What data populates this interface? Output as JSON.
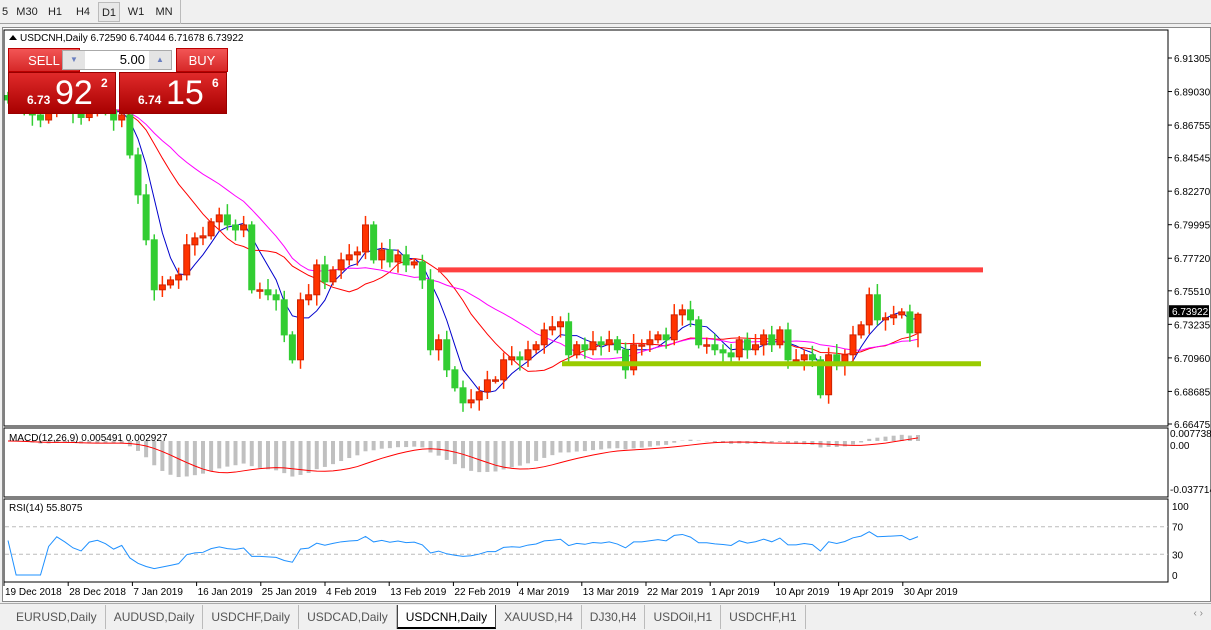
{
  "toolbar": {
    "timeframes": [
      {
        "label": "5",
        "active": false
      },
      {
        "label": "M30",
        "active": false
      },
      {
        "label": "H1",
        "active": false
      },
      {
        "label": "H4",
        "active": false
      },
      {
        "label": "D1",
        "active": true
      },
      {
        "label": "W1",
        "active": false
      },
      {
        "label": "MN",
        "active": false
      }
    ]
  },
  "chart": {
    "header": "USDCNH,Daily  6.72590 6.74044 6.71678 6.73922",
    "symbol": "USDCNH",
    "timeframe": "Daily",
    "ohlc": {
      "open": 6.7259,
      "high": 6.74044,
      "low": 6.71678,
      "close": 6.73922
    },
    "bull_color": "#ff3300",
    "bear_color": "#32cd32",
    "price_ticks": [
      "6.91305",
      "6.89030",
      "6.86755",
      "6.84545",
      "6.82270",
      "6.79995",
      "6.77720",
      "6.75510",
      "6.73235",
      "6.70960",
      "6.68685",
      "6.66475"
    ],
    "current_price_label": "6.73922",
    "resistance_line": {
      "price": 6.7693,
      "color": "#ff4040"
    },
    "support_line": {
      "price": 6.7056,
      "color": "#99cc00"
    },
    "moving_averages": [
      {
        "period": 5,
        "color": "#0000cc"
      },
      {
        "period": 13,
        "color": "#ff0000"
      },
      {
        "period": 21,
        "color": "#ff00ff"
      }
    ],
    "closes": [
      6.8846,
      6.8812,
      6.8778,
      6.8744,
      6.871,
      6.879,
      6.8846,
      6.8812,
      6.8761,
      6.8727,
      6.8795,
      6.8812,
      6.8778,
      6.871,
      6.8744,
      6.8473,
      6.8202,
      6.7897,
      6.7558,
      6.7591,
      6.7625,
      6.7659,
      6.7863,
      6.791,
      6.7924,
      6.8019,
      6.8066,
      6.7998,
      6.7964,
      6.7998,
      6.7558,
      6.7558,
      6.7524,
      6.749,
      6.7252,
      6.7083,
      6.749,
      6.7524,
      6.7727,
      6.7612,
      6.7693,
      6.7761,
      6.7795,
      6.7815,
      6.7998,
      6.7761,
      6.7829,
      6.7747,
      6.7795,
      6.7727,
      6.7747,
      6.7625,
      6.7151,
      6.7219,
      6.7015,
      6.6893,
      6.6791,
      6.6811,
      6.6866,
      6.6947,
      6.6947,
      6.7083,
      6.7103,
      6.7083,
      6.7151,
      6.7185,
      6.7286,
      6.7307,
      6.7341,
      6.7117,
      6.7185,
      6.7151,
      6.7205,
      6.7185,
      6.7219,
      6.7151,
      6.7015,
      6.7185,
      6.7185,
      6.7219,
      6.7252,
      6.7219,
      6.7388,
      6.7422,
      6.7354,
      6.7185,
      6.7185,
      6.7151,
      6.713,
      6.7103,
      6.7219,
      6.7151,
      6.7185,
      6.7252,
      6.7185,
      6.7286,
      6.7083,
      6.7083,
      6.7117,
      6.7083,
      6.6846,
      6.7117,
      6.7049,
      6.7117,
      6.7252,
      6.732,
      6.7524,
      6.7354,
      6.7368,
      6.7388,
      6.7408,
      6.7266,
      6.7392
    ],
    "dates": [
      "19 Dec 2018",
      "28 Dec 2018",
      "7 Jan 2019",
      "16 Jan 2019",
      "25 Jan 2019",
      "4 Feb 2019",
      "13 Feb 2019",
      "22 Feb 2019",
      "4 Mar 2019",
      "13 Mar 2019",
      "22 Mar 2019",
      "1 Apr 2019",
      "10 Apr 2019",
      "19 Apr 2019",
      "30 Apr 2019"
    ]
  },
  "macd": {
    "label": "MACD(12,26,9) 0.005491 0.002927",
    "ticks": [
      "0.007738",
      "0.00",
      "-0.037714"
    ],
    "histogram_color": "#c0c0c0",
    "signal_color": "#ff0000"
  },
  "rsi": {
    "label": "RSI(14) 55.8075",
    "ticks": [
      "100",
      "70",
      "30",
      "0"
    ],
    "levels": [
      70,
      30
    ],
    "line_color": "#1e90ff"
  },
  "trade_panel": {
    "sell_label": "SELL",
    "buy_label": "BUY",
    "lot": "5.00",
    "sell": {
      "small": "6.73",
      "big": "92",
      "pip": "2"
    },
    "buy": {
      "small": "6.74",
      "big": "15",
      "pip": "6"
    }
  },
  "tabs": [
    {
      "label": "EURUSD,Daily"
    },
    {
      "label": "AUDUSD,Daily"
    },
    {
      "label": "USDCHF,Daily"
    },
    {
      "label": "USDCAD,Daily"
    },
    {
      "label": "USDCNH,Daily",
      "active": true
    },
    {
      "label": "XAUUSD,H4"
    },
    {
      "label": "DJ30,H4"
    },
    {
      "label": "USDOil,H1"
    },
    {
      "label": "USDCHF,H1"
    }
  ],
  "tab_nav": "‹ ›"
}
